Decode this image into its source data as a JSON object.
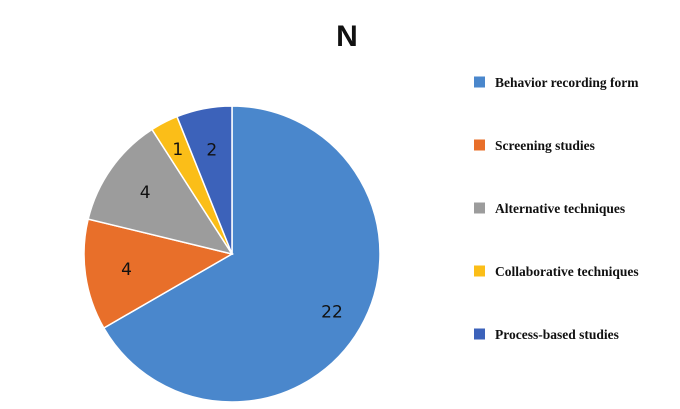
{
  "chart_data": {
    "type": "pie",
    "title": "N",
    "legend_position": "right",
    "slices": [
      {
        "label": "Behavior recording form",
        "value": 22,
        "color": "#4A87CC"
      },
      {
        "label": "Screening studies",
        "value": 4,
        "color": "#E86F2A"
      },
      {
        "label": "Alternative techniques",
        "value": 4,
        "color": "#9C9C9C"
      },
      {
        "label": "Collaborative techniques",
        "value": 1,
        "color": "#FBBE18"
      },
      {
        "label": "Process-based studies",
        "value": 2,
        "color": "#3C62BA"
      }
    ]
  }
}
